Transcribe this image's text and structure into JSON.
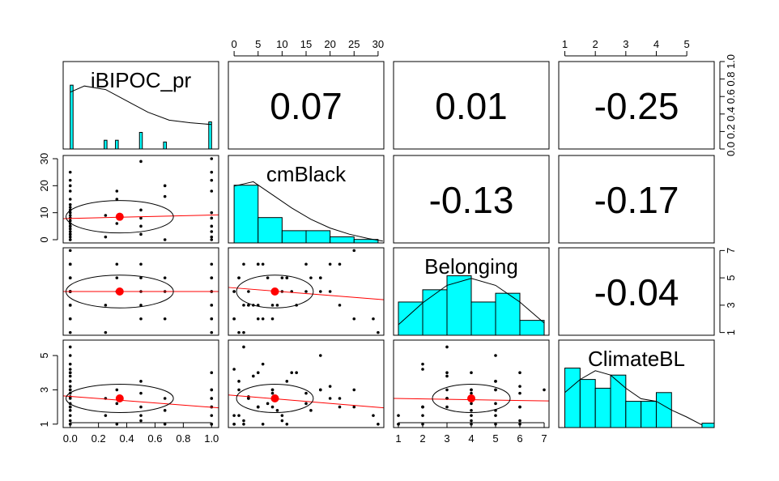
{
  "chart_data": {
    "type": "scatter",
    "variables": [
      "iBIPOC_pr",
      "cmBlack",
      "Belonging",
      "ClimateBL"
    ],
    "correlations": [
      {
        "row": 0,
        "col": 1,
        "label": "0.07"
      },
      {
        "row": 0,
        "col": 2,
        "label": "0.01"
      },
      {
        "row": 0,
        "col": 3,
        "label": "-0.25"
      },
      {
        "row": 1,
        "col": 2,
        "label": "-0.13"
      },
      {
        "row": 1,
        "col": 3,
        "label": "-0.17"
      },
      {
        "row": 2,
        "col": 3,
        "label": "-0.04"
      }
    ],
    "axes": {
      "iBIPOC_pr": {
        "range": [
          -0.05,
          1.05
        ],
        "ticks": [
          "0.0",
          "0.2",
          "0.4",
          "0.6",
          "0.8",
          "1.0"
        ]
      },
      "cmBlack": {
        "range": [
          -1.2,
          31.2
        ],
        "ticks": [
          "0",
          "5",
          "10",
          "15",
          "20",
          "25",
          "30"
        ]
      },
      "Belonging": {
        "range": [
          0.8,
          7.2
        ],
        "ticks": [
          "1",
          "2",
          "3",
          "4",
          "5",
          "6",
          "7"
        ]
      },
      "ClimateBL": {
        "range": [
          0.8,
          5.9
        ],
        "ticks": [
          "1",
          "2",
          "3",
          "4",
          "5"
        ]
      },
      "density": {
        "range": [
          0,
          1
        ],
        "ticks": [
          "0.0",
          "0.2",
          "0.4",
          "0.6",
          "0.8",
          "1.0"
        ]
      }
    },
    "histograms": {
      "iBIPOC_pr": {
        "bins": [
          [
            0,
            0.02
          ],
          [
            0.24,
            0.26
          ],
          [
            0.32,
            0.34
          ],
          [
            0.49,
            0.51
          ],
          [
            0.66,
            0.68
          ],
          [
            0.98,
            1.0
          ]
        ],
        "heights": [
          0.73,
          0.1,
          0.1,
          0.19,
          0.08,
          0.31
        ],
        "density": [
          [
            0,
            0.65
          ],
          [
            0.1,
            0.72
          ],
          [
            0.25,
            0.68
          ],
          [
            0.4,
            0.55
          ],
          [
            0.55,
            0.42
          ],
          [
            0.7,
            0.33
          ],
          [
            0.85,
            0.3
          ],
          [
            1.0,
            0.28
          ]
        ]
      },
      "cmBlack": {
        "bins": [
          [
            0,
            5
          ],
          [
            5,
            10
          ],
          [
            10,
            15
          ],
          [
            15,
            20
          ],
          [
            20,
            25
          ],
          [
            25,
            30
          ]
        ],
        "heights": [
          0.66,
          0.29,
          0.14,
          0.14,
          0.07,
          0.04
        ],
        "density": [
          [
            0,
            0.65
          ],
          [
            4,
            0.7
          ],
          [
            8,
            0.55
          ],
          [
            12,
            0.4
          ],
          [
            16,
            0.27
          ],
          [
            20,
            0.17
          ],
          [
            24,
            0.1
          ],
          [
            28,
            0.05
          ],
          [
            31,
            0.02
          ]
        ]
      },
      "Belonging": {
        "bins": [
          [
            1,
            2
          ],
          [
            2,
            3
          ],
          [
            3,
            4
          ],
          [
            4,
            5
          ],
          [
            5,
            6
          ],
          [
            6,
            7
          ]
        ],
        "heights": [
          0.38,
          0.52,
          0.68,
          0.38,
          0.48,
          0.17
        ],
        "density": [
          [
            1,
            0.12
          ],
          [
            2,
            0.37
          ],
          [
            3,
            0.57
          ],
          [
            4,
            0.65
          ],
          [
            5,
            0.57
          ],
          [
            6,
            0.38
          ],
          [
            7,
            0.14
          ]
        ]
      },
      "ClimateBL": {
        "bins": [
          [
            1,
            1.5
          ],
          [
            1.5,
            2
          ],
          [
            2,
            2.5
          ],
          [
            2.5,
            3
          ],
          [
            3,
            3.5
          ],
          [
            3.5,
            4
          ],
          [
            4,
            4.5
          ],
          [
            5.5,
            5.9
          ]
        ],
        "heights": [
          0.68,
          0.55,
          0.45,
          0.6,
          0.3,
          0.3,
          0.4,
          0.05
        ],
        "density": [
          [
            1,
            0.4
          ],
          [
            1.5,
            0.55
          ],
          [
            2,
            0.65
          ],
          [
            2.5,
            0.6
          ],
          [
            3,
            0.45
          ],
          [
            3.5,
            0.33
          ],
          [
            4,
            0.3
          ],
          [
            4.5,
            0.2
          ],
          [
            5,
            0.12
          ],
          [
            5.5,
            0.03
          ]
        ]
      }
    },
    "points": {
      "iBIPOC_pr": [
        0,
        0,
        0,
        0,
        0,
        0,
        0,
        0,
        0,
        0,
        0,
        0,
        0,
        0,
        0,
        0,
        0,
        0,
        0,
        0,
        0,
        0,
        0,
        0,
        0.25,
        0.25,
        0.33,
        0.33,
        0.33,
        0.5,
        0.5,
        0.5,
        0.5,
        0.5,
        0.67,
        0.67,
        0.67,
        1,
        1,
        1,
        1,
        1,
        1,
        1,
        1,
        1,
        1
      ],
      "cmBlack": [
        2,
        5,
        8,
        12,
        18,
        22,
        25,
        3,
        0,
        1,
        6,
        10,
        15,
        4,
        7,
        9,
        20,
        0,
        2,
        3,
        11,
        5,
        8,
        13,
        1,
        9,
        15,
        18,
        6,
        29,
        5,
        8,
        11,
        2,
        0,
        20,
        16,
        30,
        25,
        22,
        18,
        10,
        5,
        3,
        1,
        0,
        8
      ],
      "Belonging": [
        1,
        2,
        3,
        4,
        5,
        6,
        7,
        3,
        4,
        5,
        2,
        4,
        6,
        3,
        5,
        4,
        6,
        2,
        3,
        4,
        5,
        6,
        4,
        3,
        1,
        3,
        4,
        5,
        6,
        2,
        3,
        4,
        5,
        6,
        2,
        4,
        5,
        1,
        2,
        3,
        4,
        5,
        6,
        3,
        5,
        4,
        2
      ],
      "ClimateBL": [
        1,
        2,
        3,
        4,
        5,
        2,
        3,
        2.5,
        1.5,
        3.5,
        4.5,
        1.2,
        2.8,
        3.8,
        2.2,
        1.8,
        3.2,
        4.2,
        5.5,
        2.6,
        1,
        2,
        3,
        4,
        1.5,
        2.5,
        2.2,
        3,
        1,
        1.5,
        2,
        2.8,
        3.5,
        1.2,
        1,
        2.5,
        1.8,
        1,
        2,
        2.5,
        3,
        1.5,
        4,
        2.5,
        3,
        1,
        2
      ]
    },
    "means": {
      "iBIPOC_pr": 0.35,
      "cmBlack": 8.5,
      "Belonging": 4.0,
      "ClimateBL": 2.5
    },
    "sds": {
      "iBIPOC_pr": 0.38,
      "cmBlack": 8.0,
      "Belonging": 1.6,
      "ClimateBL": 1.1
    },
    "regressions": {
      "1,0": [
        [
          -0.05,
          7.8
        ],
        [
          1.05,
          9.2
        ]
      ],
      "2,0": [
        [
          -0.05,
          4.0
        ],
        [
          1.05,
          4.0
        ]
      ],
      "2,1": [
        [
          -1.2,
          4.3
        ],
        [
          31.2,
          3.4
        ]
      ],
      "3,0": [
        [
          -0.05,
          2.65
        ],
        [
          1.05,
          1.95
        ]
      ],
      "3,1": [
        [
          -1.2,
          2.7
        ],
        [
          31.2,
          1.95
        ]
      ],
      "3,2": [
        [
          0.8,
          2.5
        ],
        [
          7.2,
          2.35
        ]
      ]
    },
    "colors": {
      "histogram": "#00ffff",
      "points": "#000000",
      "mean_point": "#ff0000",
      "fit_line": "#ff0000",
      "ellipse": "#000000",
      "density_line": "#000000"
    }
  }
}
